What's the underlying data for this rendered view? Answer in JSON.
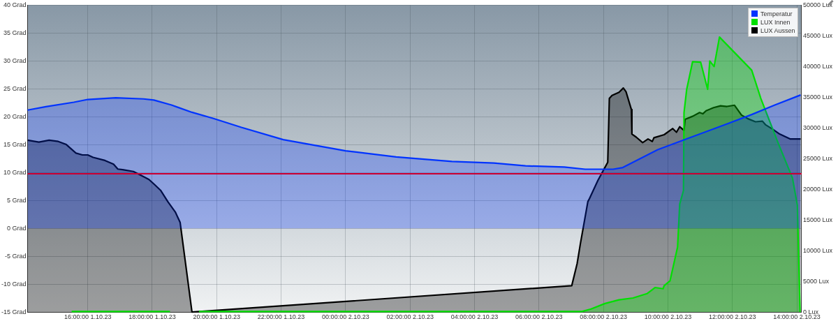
{
  "chart_data": {
    "type": "area",
    "xlim": [
      "--10-01T14:08",
      "--10-02T14:09"
    ],
    "xticks": [
      {
        "value": "--10-01T16:00",
        "label": "16:00:00 1.10.23"
      },
      {
        "value": "--10-01T18:00",
        "label": "18:00:00 1.10.23"
      },
      {
        "value": "--10-01T20:00",
        "label": "20:00:00 1.10.23"
      },
      {
        "value": "--10-01T22:00",
        "label": "22:00:00 1.10.23"
      },
      {
        "value": "--10-02T00:00",
        "label": "00:00:00 2.10.23"
      },
      {
        "value": "--10-02T02:00",
        "label": "02:00:00 2.10.23"
      },
      {
        "value": "--10-02T04:00",
        "label": "04:00:00 2.10.23"
      },
      {
        "value": "--10-02T06:00",
        "label": "06:00:00 2.10.23"
      },
      {
        "value": "--10-02T08:00",
        "label": "08:00:00 2.10.23"
      },
      {
        "value": "--10-02T10:00",
        "label": "10:00:00 2.10.23"
      },
      {
        "value": "--10-02T12:00",
        "label": "12:00:00 2.10.23"
      },
      {
        "value": "--10-02T14:00",
        "label": "14:00:00 2.10.23"
      }
    ],
    "ylim": [
      -15,
      40
    ],
    "yticks": [
      {
        "value": -15,
        "label": "-15 Grad"
      },
      {
        "value": -10,
        "label": "-10 Grad"
      },
      {
        "value": -5,
        "label": "-5 Grad"
      },
      {
        "value": 0,
        "label": "0 Grad"
      },
      {
        "value": 5,
        "label": "5 Grad"
      },
      {
        "value": 10,
        "label": "10 Grad"
      },
      {
        "value": 15,
        "label": "15 Grad"
      },
      {
        "value": 20,
        "label": "20 Grad"
      },
      {
        "value": 25,
        "label": "25 Grad"
      },
      {
        "value": 30,
        "label": "30 Grad"
      },
      {
        "value": 35,
        "label": "35 Grad"
      },
      {
        "value": 40,
        "label": "40 Grad"
      }
    ],
    "y2lim": [
      0,
      50000
    ],
    "y2ticks": [
      {
        "value": 0,
        "label": "0 Lux"
      },
      {
        "value": 5000,
        "label": "5000 Lux"
      },
      {
        "value": 10000,
        "label": "10000 Lux"
      },
      {
        "value": 15000,
        "label": "15000 Lux"
      },
      {
        "value": 20000,
        "label": "20000 Lux"
      },
      {
        "value": 25000,
        "label": "25000 Lux"
      },
      {
        "value": 30000,
        "label": "30000 Lux"
      },
      {
        "value": 35000,
        "label": "35000 Lux"
      },
      {
        "value": 40000,
        "label": "40000 Lux"
      },
      {
        "value": 45000,
        "label": "45000 Lux"
      },
      {
        "value": 50000,
        "label": "50000 Lux"
      }
    ],
    "grid": true,
    "legend": "top right",
    "marker": "none",
    "ref_lines": [
      {
        "axis": "y",
        "value": 9.8,
        "color": "#cc0033"
      }
    ],
    "series": [
      {
        "name": "Temperatur",
        "color": "#0033ff",
        "x": [
          "--10-01T14:08",
          "--10-01T14:42",
          "--10-01T15:34",
          "--10-01T16:00",
          "--10-01T16:52",
          "--10-01T17:44",
          "--10-01T18:03",
          "--10-01T18:36",
          "--10-01T19:14",
          "--10-01T19:54",
          "--10-01T20:46",
          "--10-01T22:04",
          "--10-02T00:00",
          "--10-02T01:34",
          "--10-02T03:18",
          "--10-02T04:36",
          "--10-02T05:35",
          "--10-02T06:47",
          "--10-02T07:26",
          "--10-02T08:18",
          "--10-02T08:36",
          "--10-02T09:41",
          "--10-02T10:34",
          "--10-02T11:52",
          "--10-02T12:36",
          "--10-02T13:19",
          "--10-02T14:07"
        ],
        "values": [
          21.2,
          21.8,
          22.6,
          23.1,
          23.4,
          23.2,
          23,
          22.1,
          20.8,
          19.7,
          18.1,
          15.9,
          13.9,
          12.8,
          12,
          11.7,
          11.2,
          11,
          10.6,
          10.6,
          10.9,
          14.1,
          16,
          18.8,
          20.4,
          22.1,
          23.9
        ]
      },
      {
        "name": "LUX Innen",
        "color": "#00e000",
        "axis": "y2",
        "x": [
          "--10-01T15:30",
          "--10-01T18:33",
          "--10-01T19:00",
          "--10-01T19:27",
          "--10-02T07:20",
          "--10-02T07:37",
          "--10-02T08:03",
          "--10-02T08:29",
          "--10-02T08:55",
          "--10-02T09:21",
          "--10-02T09:36",
          "--10-02T09:51",
          "--10-02T09:53",
          "--10-02T10:04",
          "--10-02T10:18",
          "--10-02T10:22",
          "--10-02T10:29",
          "--10-02T10:30",
          "--10-02T10:35",
          "--10-02T10:46",
          "--10-02T11:01",
          "--10-02T11:14",
          "--10-02T11:18",
          "--10-02T11:26",
          "--10-02T11:36",
          "--10-02T12:36",
          "--10-02T12:53",
          "--10-02T13:24",
          "--10-02T13:52",
          "--10-02T14:01",
          "--10-02T14:06"
        ],
        "values": [
          100,
          100,
          null,
          100,
          100,
          500,
          1400,
          2000,
          2300,
          3000,
          4000,
          3800,
          4300,
          5100,
          10600,
          17600,
          19800,
          32500,
          36300,
          40800,
          40700,
          36300,
          40900,
          40000,
          44800,
          39400,
          34800,
          27800,
          21800,
          17400,
          0
        ]
      },
      {
        "name": "LUX Aussen",
        "color": "#000000",
        "axis": "y2",
        "x": [
          "--10-01T14:08",
          "--10-01T14:29",
          "--10-01T14:48",
          "--10-01T15:05",
          "--10-01T15:20",
          "--10-01T15:38",
          "--10-01T15:50",
          "--10-01T16:00",
          "--10-01T16:10",
          "--10-01T16:32",
          "--10-01T16:48",
          "--10-01T16:56",
          "--10-01T17:05",
          "--10-01T17:25",
          "--10-01T17:41",
          "--10-01T17:54",
          "--10-01T18:04",
          "--10-01T18:16",
          "--10-01T18:29",
          "--10-01T18:43",
          "--10-01T18:52",
          "--10-01T19:14",
          "--10-02T07:01",
          "--10-02T07:11",
          "--10-02T07:17",
          "--10-02T07:31",
          "--10-02T07:34",
          "--10-02T07:50",
          "--10-02T08:03",
          "--10-02T08:08",
          "--10-02T08:11",
          "--10-02T08:16",
          "--10-02T08:29",
          "--10-02T08:37",
          "--10-02T08:42",
          "--10-02T08:52",
          "--10-02T08:53",
          "--10-02T09:01",
          "--10-02T09:13",
          "--10-02T09:23",
          "--10-02T09:31",
          "--10-02T09:34",
          "--10-02T09:53",
          "--10-02T10:09",
          "--10-02T10:16",
          "--10-02T10:22",
          "--10-02T10:30",
          "--10-02T10:32",
          "--10-02T10:46",
          "--10-02T10:59",
          "--10-02T11:05",
          "--10-02T11:11",
          "--10-02T11:25",
          "--10-02T11:38",
          "--10-02T11:50",
          "--10-02T12:04",
          "--10-02T12:17",
          "--10-02T12:29",
          "--10-02T12:43",
          "--10-02T12:56",
          "--10-02T13:02",
          "--10-02T13:15",
          "--10-02T13:28",
          "--10-02T13:48",
          "--10-02T13:58",
          "--10-02T14:07"
        ],
        "values": [
          28000,
          27700,
          28000,
          27800,
          27300,
          25900,
          25600,
          25600,
          25200,
          24700,
          24100,
          23300,
          23200,
          22900,
          22200,
          21600,
          20800,
          19800,
          18000,
          16300,
          14600,
          0,
          4300,
          7900,
          11100,
          18000,
          18500,
          21500,
          23600,
          24400,
          34800,
          35300,
          35800,
          36500,
          35900,
          33000,
          29000,
          28500,
          27600,
          28200,
          27800,
          28400,
          28900,
          29900,
          29300,
          30200,
          29600,
          31400,
          31900,
          32500,
          32300,
          32800,
          33300,
          33600,
          33500,
          33700,
          32100,
          31500,
          31000,
          31100,
          30500,
          29800,
          29000,
          28200,
          28200,
          28200
        ]
      }
    ]
  }
}
